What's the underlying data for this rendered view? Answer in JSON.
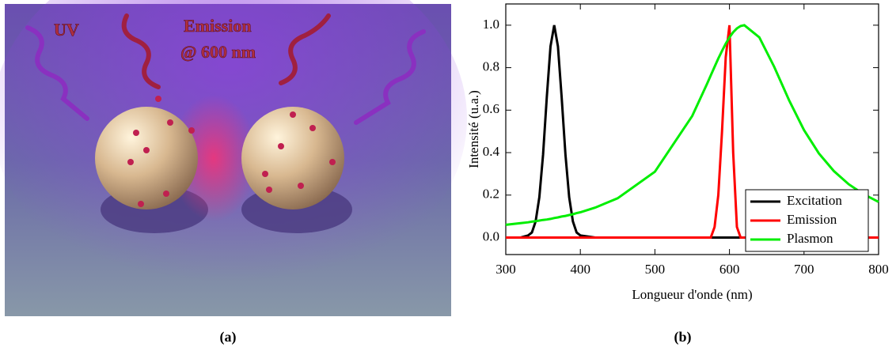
{
  "illustration": {
    "labels": [
      "UV",
      "Emission",
      "@ 600 nm"
    ],
    "caption": "(a)"
  },
  "chart_data": {
    "type": "line",
    "caption": "(b)",
    "xlabel": "Longueur d'onde (nm)",
    "ylabel": "Intensité (u.a.)",
    "x": [
      300,
      320,
      330,
      335,
      340,
      345,
      350,
      355,
      360,
      365,
      370,
      375,
      380,
      385,
      390,
      395,
      400,
      420,
      450,
      500,
      550,
      570,
      575,
      580,
      585,
      590,
      595,
      600,
      605,
      610,
      615,
      620,
      640,
      660,
      680,
      700,
      720,
      740,
      760,
      780,
      800
    ],
    "series": [
      {
        "name": "Excitation",
        "color": "#000000",
        "values": [
          0,
          0,
          0.01,
          0.024,
          0.076,
          0.19,
          0.39,
          0.66,
          0.9,
          1.0,
          0.9,
          0.66,
          0.39,
          0.19,
          0.076,
          0.024,
          0.01,
          0,
          0,
          0,
          0,
          0,
          0,
          0,
          0,
          0,
          0,
          0,
          0,
          0,
          0,
          0,
          0,
          0,
          0,
          0,
          0,
          0,
          0,
          0,
          0
        ]
      },
      {
        "name": "Emission",
        "color": "#ff0000",
        "values": [
          0,
          0,
          0,
          0,
          0,
          0,
          0,
          0,
          0,
          0,
          0,
          0,
          0,
          0,
          0,
          0,
          0,
          0,
          0,
          0,
          0,
          0,
          0,
          0.05,
          0.2,
          0.5,
          0.85,
          1.0,
          0.4,
          0.05,
          0,
          0,
          0,
          0,
          0,
          0,
          0,
          0,
          0,
          0,
          0
        ]
      },
      {
        "name": "Plasmon",
        "color": "#00ee00",
        "values": [
          0.06,
          0.068,
          0.072,
          0.075,
          0.077,
          0.08,
          0.083,
          0.085,
          0.088,
          0.092,
          0.095,
          0.099,
          0.102,
          0.106,
          0.11,
          0.115,
          0.119,
          0.141,
          0.185,
          0.31,
          0.572,
          0.724,
          0.764,
          0.804,
          0.843,
          0.879,
          0.913,
          0.943,
          0.967,
          0.985,
          0.996,
          1.0,
          0.943,
          0.804,
          0.646,
          0.506,
          0.396,
          0.313,
          0.251,
          0.204,
          0.168
        ]
      }
    ],
    "xlim": [
      300,
      800
    ],
    "xticks": [
      300,
      400,
      500,
      600,
      700,
      800
    ],
    "ylim": [
      -0.08,
      1.1
    ],
    "yticks": [
      {
        "value": 0,
        "label": "0.0"
      },
      0.2,
      0.4,
      0.6,
      0.8,
      {
        "value": 1,
        "label": "1.0"
      }
    ],
    "legend": "lower right"
  }
}
